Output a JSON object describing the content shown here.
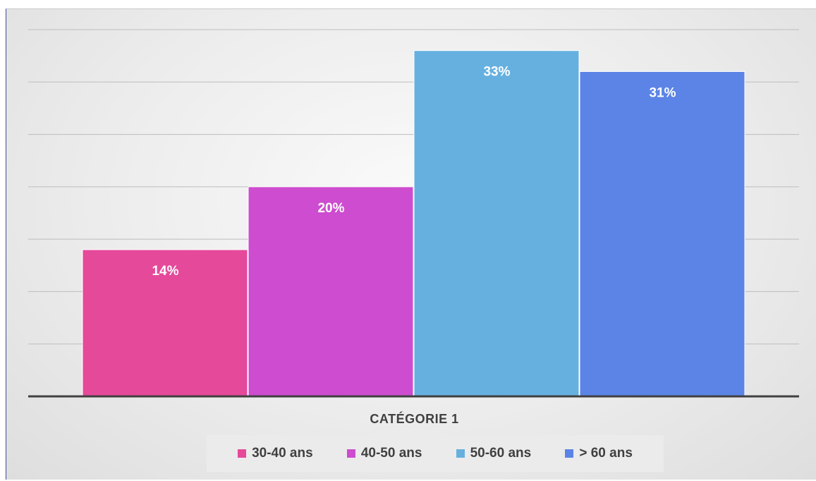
{
  "chart_data": {
    "type": "bar",
    "categories": [
      "CATÉGORIE 1"
    ],
    "series": [
      {
        "name": "30-40 ans",
        "values": [
          14
        ],
        "label": "14%",
        "color": "#e5499a"
      },
      {
        "name": "40-50 ans",
        "values": [
          20
        ],
        "label": "20%",
        "color": "#cd4ccf"
      },
      {
        "name": "50-60 ans",
        "values": [
          33
        ],
        "label": "33%",
        "color": "#66b0df"
      },
      {
        "name": "> 60 ans",
        "values": [
          31
        ],
        "label": "31%",
        "color": "#5b84e6"
      }
    ],
    "ylim": [
      0,
      35
    ],
    "grid": true,
    "legend": "bottom",
    "title": "",
    "xlabel": "",
    "ylabel": ""
  }
}
